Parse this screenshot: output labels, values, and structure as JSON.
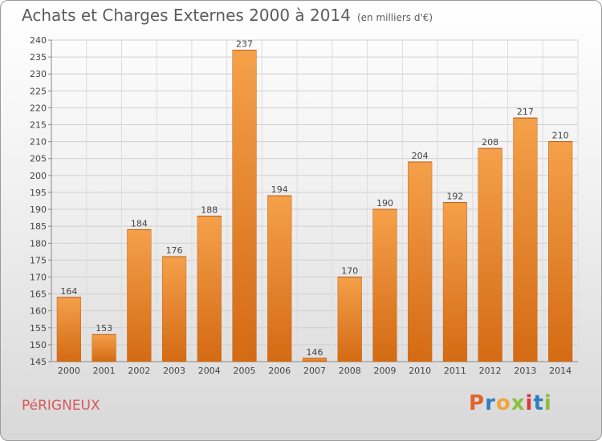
{
  "header": {
    "title": "Achats et Charges Externes 2000 à 2014",
    "subtitle": "(en milliers d'€)"
  },
  "footer": {
    "city": "PéRIGNEUX",
    "logo_letters": [
      "P",
      "r",
      "o",
      "x",
      "i",
      "t",
      "i"
    ],
    "logo_colors": [
      "#e0632b",
      "#2f7fc1",
      "#f0a43a",
      "#8cbf3f",
      "#d93a3a",
      "#2f7fc1",
      "#8cbf3f"
    ]
  },
  "chart_data": {
    "type": "bar",
    "title": "Achats et Charges Externes 2000 à 2014",
    "subtitle": "(en milliers d'€)",
    "categories": [
      "2000",
      "2001",
      "2002",
      "2003",
      "2004",
      "2005",
      "2006",
      "2007",
      "2008",
      "2009",
      "2010",
      "2011",
      "2012",
      "2013",
      "2014"
    ],
    "values": [
      164,
      153,
      184,
      176,
      188,
      237,
      194,
      146,
      170,
      190,
      204,
      192,
      208,
      217,
      210
    ],
    "ylim": [
      145,
      240
    ],
    "ytick_step": 5,
    "grid": true,
    "bar_color_top": "#f5a04a",
    "bar_color_bottom": "#d46a14",
    "legend": "none"
  }
}
